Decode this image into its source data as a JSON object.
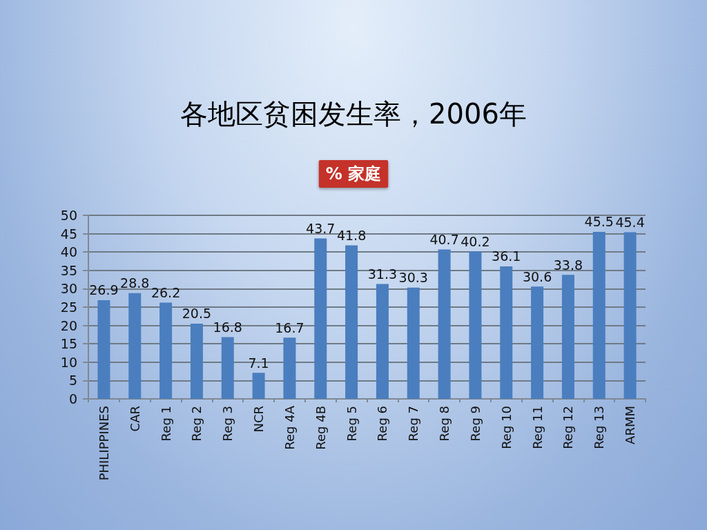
{
  "chart_data": {
    "type": "bar",
    "title": "各地区贫困发生率，2006年",
    "subtitle": "% 家庭",
    "categories": [
      "PHILIPPINES",
      "CAR",
      "Reg 1",
      "Reg 2",
      "Reg 3",
      "NCR",
      "Reg 4A",
      "Reg 4B",
      "Reg 5",
      "Reg 6",
      "Reg 7",
      "Reg 8",
      "Reg 9",
      "Reg 10",
      "Reg 11",
      "Reg 12",
      "Reg 13",
      "ARMM"
    ],
    "values": [
      26.9,
      28.8,
      26.2,
      20.5,
      16.8,
      7.1,
      16.7,
      43.7,
      41.8,
      31.3,
      30.3,
      40.7,
      40.2,
      36.1,
      30.6,
      33.8,
      45.5,
      45.4
    ],
    "color": "#4a7ebf",
    "ylim": [
      0,
      50
    ],
    "yticks": [
      0,
      5,
      10,
      15,
      20,
      25,
      30,
      35,
      40,
      45,
      50
    ],
    "grid": "y",
    "data_labels": true
  }
}
